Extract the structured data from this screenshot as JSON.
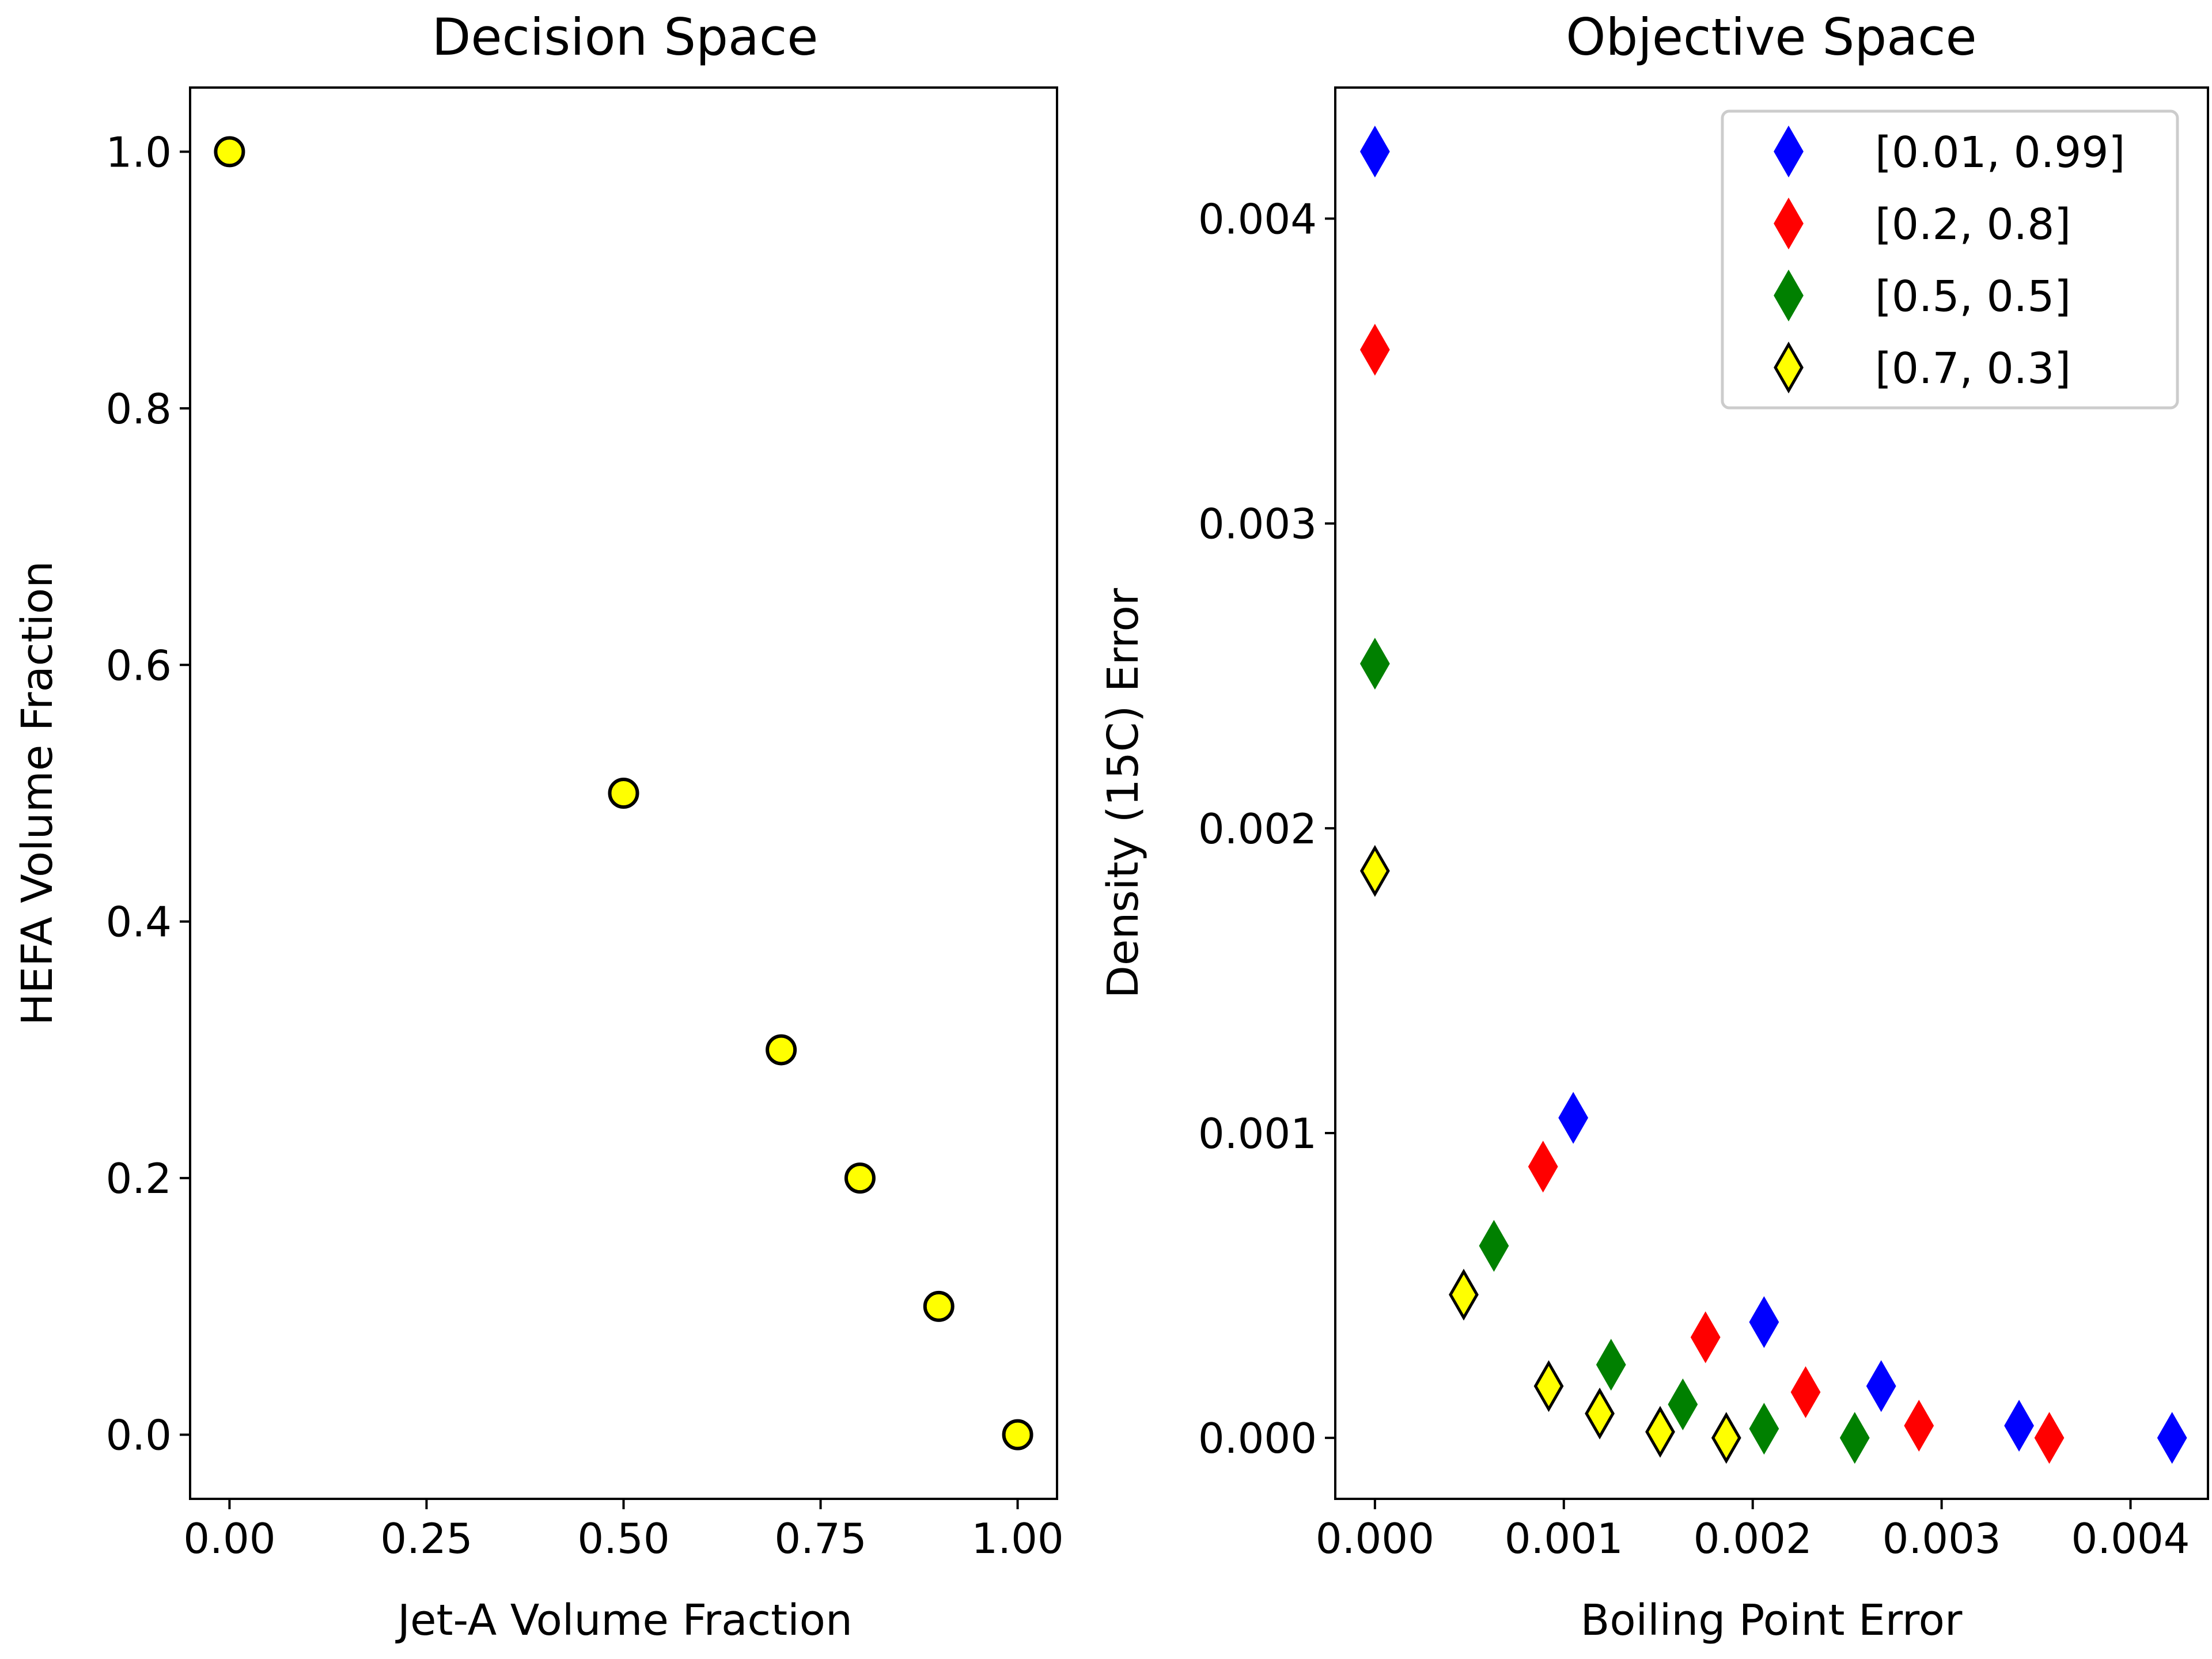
{
  "chart_data": [
    {
      "type": "scatter",
      "title": "Decision Space",
      "xlabel": "Jet-A Volume Fraction",
      "ylabel": "HEFA Volume Fraction",
      "xlim": [
        -0.05,
        1.05
      ],
      "ylim": [
        -0.05,
        1.05
      ],
      "xticks": [
        0.0,
        0.25,
        0.5,
        0.75,
        1.0
      ],
      "xtick_labels": [
        "0.00",
        "0.25",
        "0.50",
        "0.75",
        "1.00"
      ],
      "yticks": [
        0.0,
        0.2,
        0.4,
        0.6,
        0.8,
        1.0
      ],
      "ytick_labels": [
        "0.0",
        "0.2",
        "0.4",
        "0.6",
        "0.8",
        "1.0"
      ],
      "grid": false,
      "marker": "circle",
      "color": "#ffff00",
      "edgecolor": "#000000",
      "points": [
        {
          "x": 0.0,
          "y": 1.0
        },
        {
          "x": 0.5,
          "y": 0.5
        },
        {
          "x": 0.7,
          "y": 0.3
        },
        {
          "x": 0.8,
          "y": 0.2
        },
        {
          "x": 0.9,
          "y": 0.1
        },
        {
          "x": 1.0,
          "y": 0.0
        }
      ]
    },
    {
      "type": "scatter",
      "title": "Objective Space",
      "xlabel": "Boiling Point Error",
      "ylabel": "Density (15C) Error",
      "xlim": [
        -0.00021,
        0.00441
      ],
      "ylim": [
        -0.0002,
        0.00443
      ],
      "xticks": [
        0.0,
        0.001,
        0.002,
        0.003,
        0.004
      ],
      "xtick_labels": [
        "0.000",
        "0.001",
        "0.002",
        "0.003",
        "0.004"
      ],
      "yticks": [
        0.0,
        0.001,
        0.002,
        0.003,
        0.004
      ],
      "ytick_labels": [
        "0.000",
        "0.001",
        "0.002",
        "0.003",
        "0.004"
      ],
      "grid": false,
      "marker": "diamond",
      "legend_placement": "upper right",
      "series": [
        {
          "name": "[0.01, 0.99]",
          "color": "#0000ff",
          "edgecolor": "#0000ff",
          "points": [
            {
              "x": 0.0,
              "y": 0.00422
            },
            {
              "x": 0.00105,
              "y": 0.00105
            },
            {
              "x": 0.00206,
              "y": 0.00038
            },
            {
              "x": 0.00268,
              "y": 0.00017
            },
            {
              "x": 0.00341,
              "y": 4e-05
            },
            {
              "x": 0.00422,
              "y": 0.0
            }
          ]
        },
        {
          "name": "[0.2, 0.8]",
          "color": "#ff0000",
          "edgecolor": "#ff0000",
          "points": [
            {
              "x": 0.0,
              "y": 0.00357
            },
            {
              "x": 0.00089,
              "y": 0.00089
            },
            {
              "x": 0.00175,
              "y": 0.00033
            },
            {
              "x": 0.00228,
              "y": 0.00015
            },
            {
              "x": 0.00288,
              "y": 4e-05
            },
            {
              "x": 0.00357,
              "y": 0.0
            }
          ]
        },
        {
          "name": "[0.5, 0.5]",
          "color": "#008000",
          "edgecolor": "#008000",
          "points": [
            {
              "x": 0.0,
              "y": 0.00254
            },
            {
              "x": 0.00063,
              "y": 0.00063
            },
            {
              "x": 0.00125,
              "y": 0.00024
            },
            {
              "x": 0.00163,
              "y": 0.00011
            },
            {
              "x": 0.00206,
              "y": 3e-05
            },
            {
              "x": 0.00254,
              "y": 0.0
            }
          ]
        },
        {
          "name": "[0.7, 0.3]",
          "color": "#ffff00",
          "edgecolor": "#000000",
          "points": [
            {
              "x": 0.0,
              "y": 0.00186
            },
            {
              "x": 0.00047,
              "y": 0.00047
            },
            {
              "x": 0.00092,
              "y": 0.00017
            },
            {
              "x": 0.00119,
              "y": 8e-05
            },
            {
              "x": 0.00151,
              "y": 2e-05
            },
            {
              "x": 0.00186,
              "y": 0.0
            }
          ]
        }
      ]
    }
  ]
}
